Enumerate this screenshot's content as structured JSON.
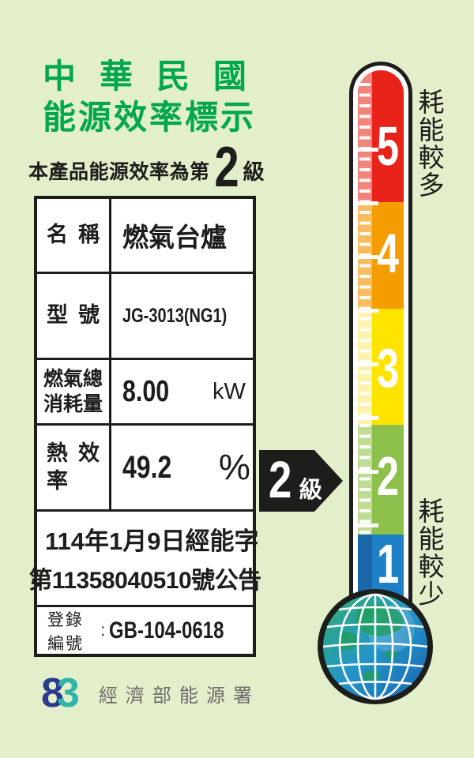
{
  "header": {
    "title_line1": "中華民國",
    "title_line2": "能源效率標示",
    "subtitle_prefix": "本產品能源效率為第",
    "subtitle_grade": "2",
    "subtitle_suffix": "級"
  },
  "table": {
    "rows": [
      {
        "label": "名稱",
        "value": "燃氣台爐"
      },
      {
        "label": "型號",
        "value": "JG-3013(NG1)"
      },
      {
        "label_line1": "燃氣總",
        "label_line2": "消耗量",
        "value": "8.00",
        "unit": "kW"
      },
      {
        "label": "熱效率",
        "value": "49.2",
        "unit": "%"
      }
    ],
    "announcement_line1": "114年1月9日經能字",
    "announcement_line2": "第11358040510號公告",
    "registration_label": "登錄編號",
    "registration_colon": ":",
    "registration_value": "GB-104-0618"
  },
  "grade_arrow": {
    "number": "2",
    "suffix": "級"
  },
  "thermometer": {
    "top_label": "耗能較多",
    "bottom_label": "耗能較少",
    "scale": [
      {
        "grade": "5",
        "color": "#e8231a",
        "strip_color": "#f2857b"
      },
      {
        "grade": "4",
        "color": "#f59c00",
        "strip_color": "#f8bc5e"
      },
      {
        "grade": "3",
        "color": "#ffe400",
        "strip_color": "#fdf2ae"
      },
      {
        "grade": "2",
        "color": "#8cc04a",
        "strip_color": "#bedc94"
      },
      {
        "grade": "1",
        "color": "#1d7fc6",
        "strip_color": "#1c67ab"
      }
    ]
  },
  "footer": {
    "logo_char1": "8",
    "logo_char2": "3",
    "agency": "經濟部能源署"
  },
  "colors": {
    "background": "#e3efca",
    "title_green": "#00a650",
    "outline_black": "#1d1d1b",
    "logo_navy": "#2a3b8f",
    "logo_teal": "#2fb3aa"
  }
}
